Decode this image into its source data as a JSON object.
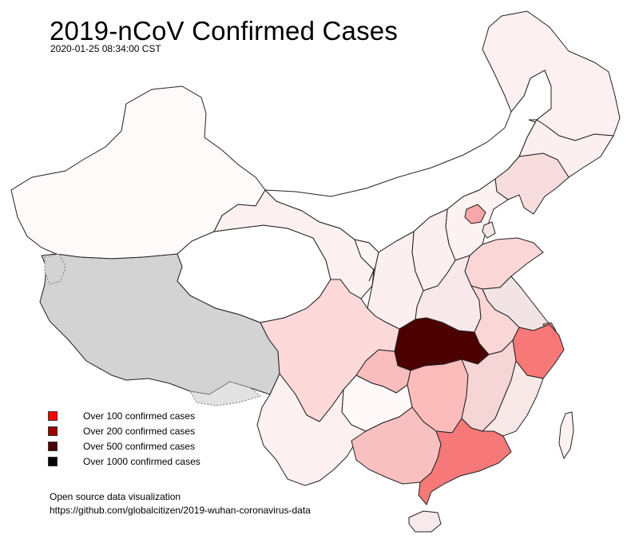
{
  "title": "2019-nCoV Confirmed Cases",
  "timestamp": "2020-01-25 08:34:00 CST",
  "legend": [
    {
      "label": "Over 100 confirmed cases",
      "color": "#ff0000"
    },
    {
      "label": "Over 200 confirmed cases",
      "color": "#990000"
    },
    {
      "label": "Over 500 confirmed cases",
      "color": "#4d0000"
    },
    {
      "label": "Over 1000 confirmed cases",
      "color": "#000000"
    }
  ],
  "footer": {
    "line1": "Open source data visualization",
    "line2": "https://github.com/globalcitizen/2019-wuhan-coronavirus-data"
  },
  "colors": {
    "no_data": "#d3d3d3",
    "max_intensity": "#4d0000",
    "low": "#fdf2f2",
    "mid": "#f8c8c8",
    "high": "#f98080",
    "hubei": "#4d0000"
  },
  "regions": [
    {
      "id": "xinjiang",
      "fill": "#fefafa"
    },
    {
      "id": "tibet",
      "fill": "#d3d3d3"
    },
    {
      "id": "qinghai",
      "fill": "#ffffff"
    },
    {
      "id": "gansu",
      "fill": "#fdf0f0"
    },
    {
      "id": "inner-mongolia",
      "fill": "#ffffff"
    },
    {
      "id": "heilongjiang",
      "fill": "#fdf0f0"
    },
    {
      "id": "jilin",
      "fill": "#fcefef"
    },
    {
      "id": "liaoning",
      "fill": "#f7dddd"
    },
    {
      "id": "ningxia",
      "fill": "#fdf4f4"
    },
    {
      "id": "shaanxi",
      "fill": "#fcefef"
    },
    {
      "id": "shanxi",
      "fill": "#fcefef"
    },
    {
      "id": "hebei",
      "fill": "#fdf2f2"
    },
    {
      "id": "beijing",
      "fill": "#f7a7a7"
    },
    {
      "id": "tianjin",
      "fill": "#f5e6e6"
    },
    {
      "id": "shandong",
      "fill": "#fbd6d6"
    },
    {
      "id": "henan",
      "fill": "#f8e8ea"
    },
    {
      "id": "jiangsu",
      "fill": "#f2e4e4"
    },
    {
      "id": "anhui",
      "fill": "#fad6d6"
    },
    {
      "id": "hubei",
      "fill": "#4d0000"
    },
    {
      "id": "sichuan",
      "fill": "#fdd9d9"
    },
    {
      "id": "chongqing",
      "fill": "#f9bdbd"
    },
    {
      "id": "guizhou",
      "fill": "#fef8f8"
    },
    {
      "id": "yunnan",
      "fill": "#fdf0f0"
    },
    {
      "id": "hunan",
      "fill": "#fcbcbc"
    },
    {
      "id": "jiangxi",
      "fill": "#f5d5d5"
    },
    {
      "id": "zhejiang",
      "fill": "#f87878"
    },
    {
      "id": "fujian",
      "fill": "#f8e8e8"
    },
    {
      "id": "guangxi",
      "fill": "#f8c0c0"
    },
    {
      "id": "guangdong",
      "fill": "#f67878"
    },
    {
      "id": "hainan",
      "fill": "#f8eaea"
    },
    {
      "id": "taiwan",
      "fill": "#fdf2f2"
    },
    {
      "id": "shanghai",
      "fill": "#f59a9a"
    }
  ]
}
